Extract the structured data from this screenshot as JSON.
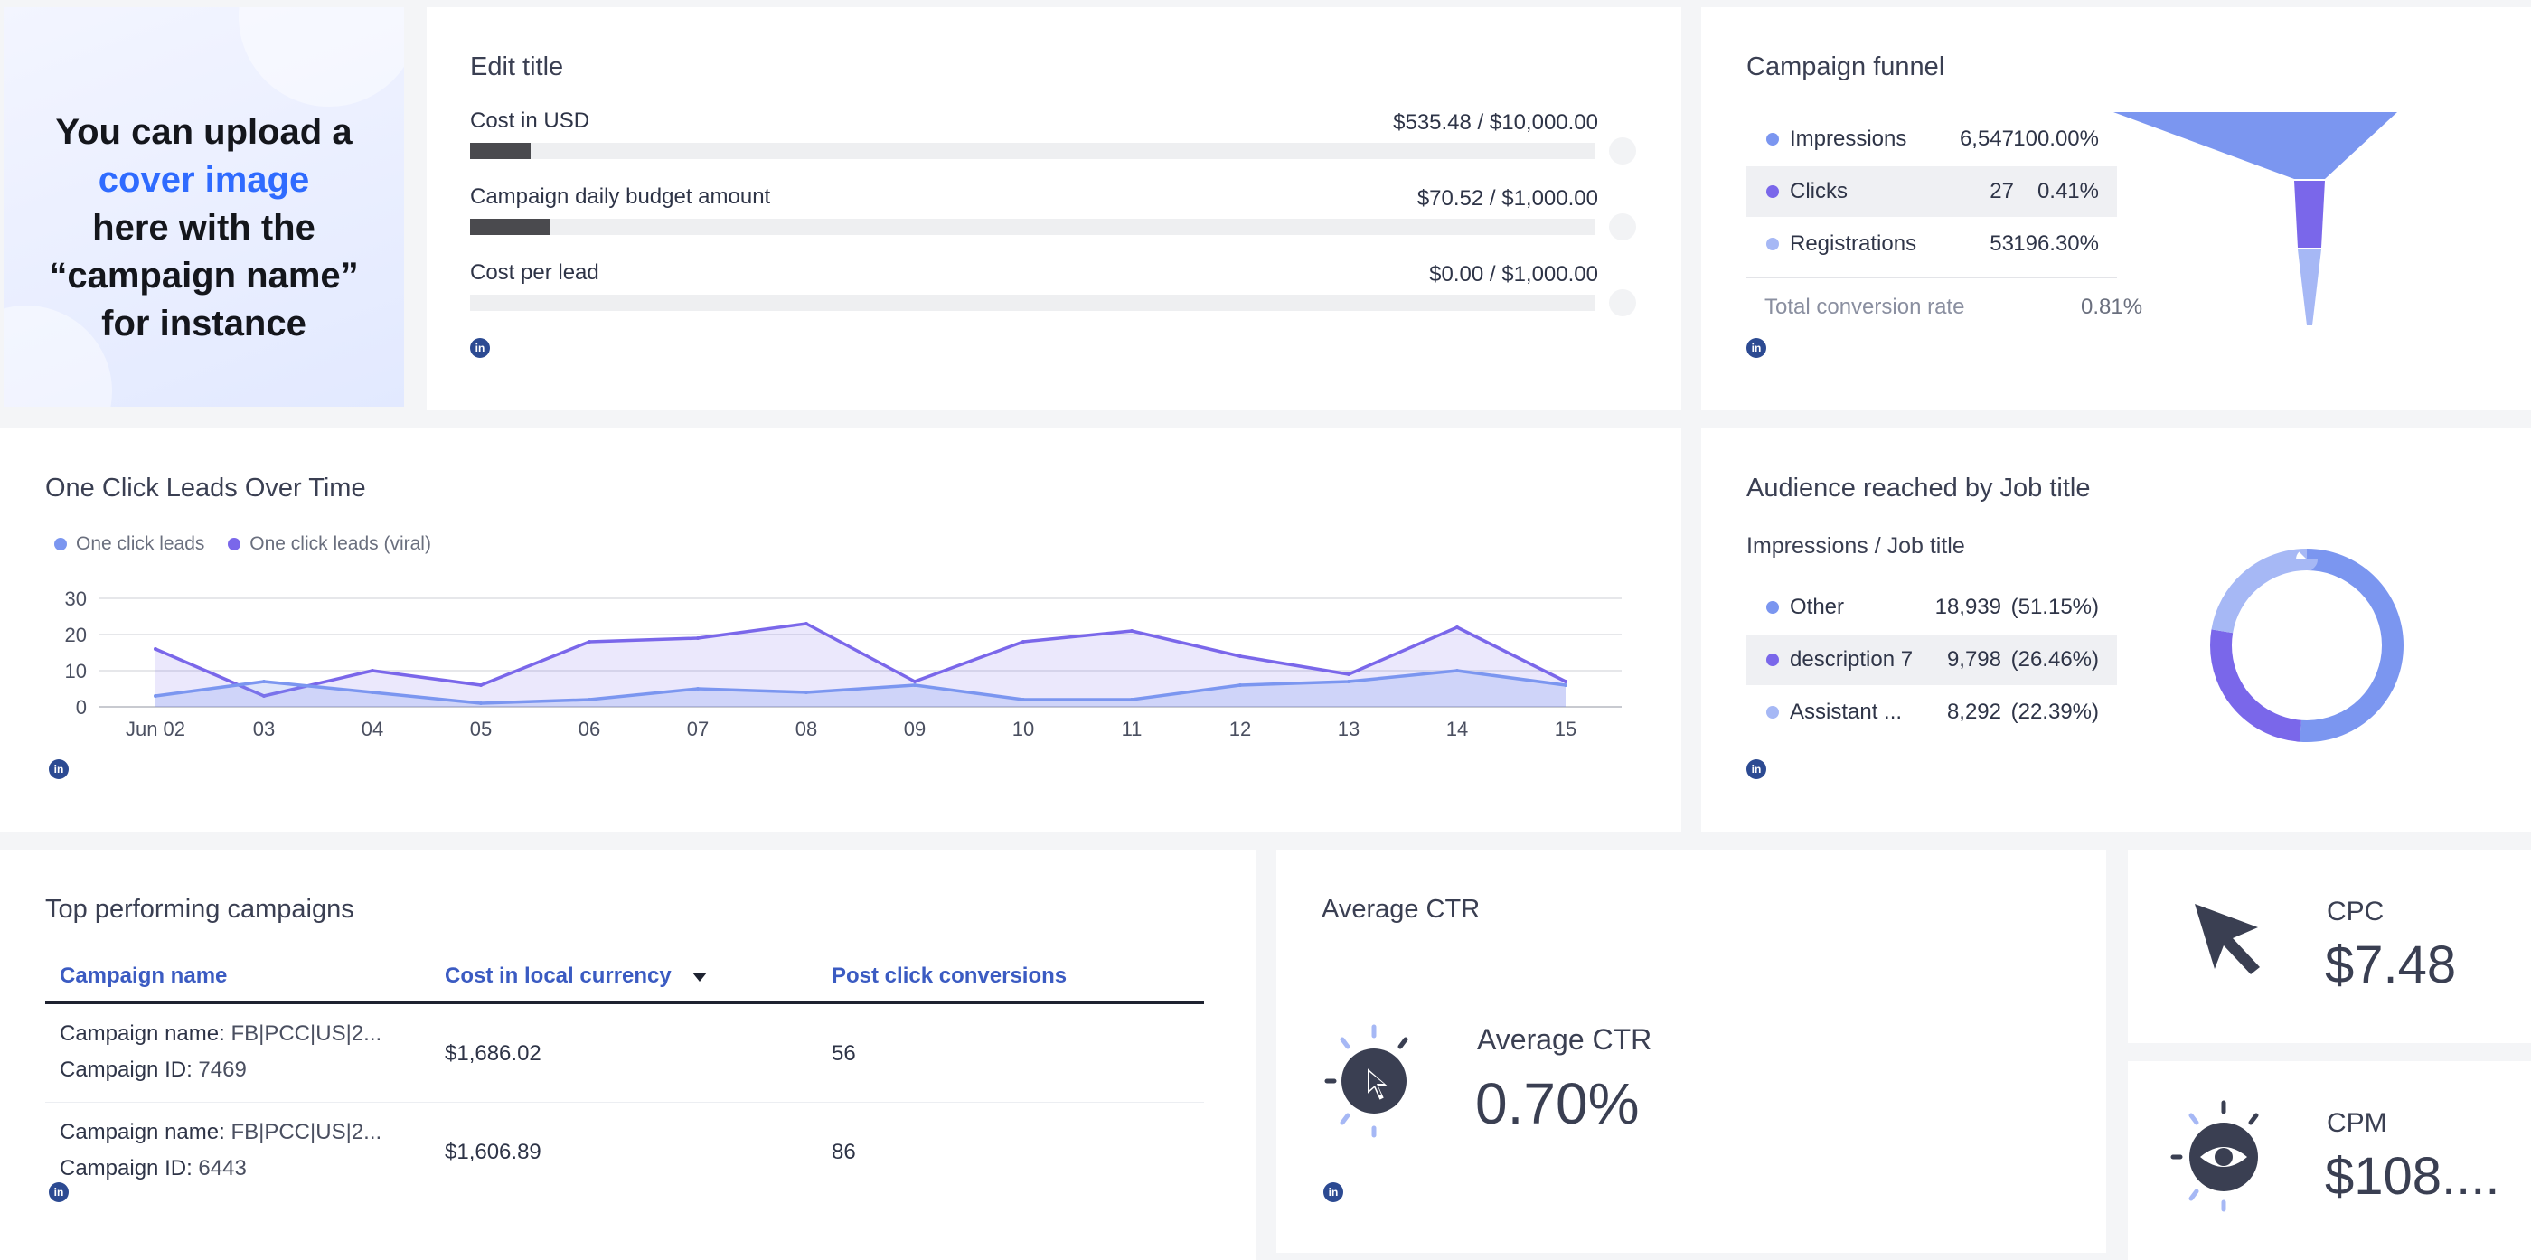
{
  "cover": {
    "line1": "You can upload a",
    "line2": "cover image",
    "line3": "here with the",
    "line4": "“campaign name”",
    "line5": "for instance"
  },
  "budget": {
    "title": "Edit title",
    "rows": [
      {
        "label": "Cost in USD",
        "value": "$535.48 / $10,000.00",
        "progress": 0.054
      },
      {
        "label": "Campaign daily budget amount",
        "value": "$70.52 / $1,000.00",
        "progress": 0.071
      },
      {
        "label": "Cost per lead",
        "value": "$0.00 / $1,000.00",
        "progress": 0.0
      }
    ],
    "source_icon": "linkedin-icon"
  },
  "funnel": {
    "title": "Campaign funnel",
    "rows": [
      {
        "name": "Impressions",
        "value": "6,547",
        "pct": "100.00%",
        "color": "#7b96f0"
      },
      {
        "name": "Clicks",
        "value": "27",
        "pct": "0.41%",
        "color": "#7a67ea"
      },
      {
        "name": "Registrations",
        "value": "53",
        "pct": "196.30%",
        "color": "#a6b8f5"
      }
    ],
    "total_label": "Total conversion rate",
    "total_value": "0.81%"
  },
  "leads": {
    "title": "One Click Leads Over Time",
    "legend": [
      {
        "name": "One click leads",
        "color": "#7b96f0"
      },
      {
        "name": "One click leads (viral)",
        "color": "#7a67ea"
      }
    ]
  },
  "chart_data": {
    "type": "area",
    "categories": [
      "Jun 02",
      "03",
      "04",
      "05",
      "06",
      "07",
      "08",
      "09",
      "10",
      "11",
      "12",
      "13",
      "14",
      "15"
    ],
    "series": [
      {
        "name": "One click leads",
        "values": [
          3,
          7,
          4,
          1,
          2,
          5,
          4,
          6,
          2,
          2,
          6,
          7,
          10,
          6
        ],
        "color": "#7b96f0"
      },
      {
        "name": "One click leads (viral)",
        "values": [
          16,
          3,
          10,
          6,
          18,
          19,
          23,
          7,
          18,
          21,
          14,
          9,
          22,
          7
        ],
        "color": "#7a67ea"
      }
    ],
    "yticks": [
      0,
      10,
      20,
      30
    ],
    "ylim": [
      0,
      30
    ],
    "grid": true,
    "legend_position": "top-left"
  },
  "audience": {
    "title": "Audience reached by Job title",
    "subtitle": "Impressions / Job title",
    "rows": [
      {
        "name": "Other",
        "value": "18,939",
        "pct": "(51.15%)",
        "share": 51.15,
        "color": "#7b96f0"
      },
      {
        "name": "description 7",
        "value": "9,798",
        "pct": "(26.46%)",
        "share": 26.46,
        "color": "#7a67ea"
      },
      {
        "name": "Assistant ...",
        "value": "8,292",
        "pct": "(22.39%)",
        "share": 22.39,
        "color": "#a6b8f5"
      }
    ]
  },
  "campaigns": {
    "title": "Top performing campaigns",
    "headers": [
      "Campaign name",
      "Cost in local currency",
      "Post click conversions"
    ],
    "rows": [
      {
        "name_key": "Campaign name:",
        "name_val": "FB|PCC|US|2...",
        "id_key": "Campaign ID:",
        "id_val": "7469",
        "cost": "$1,686.02",
        "conversions": "56"
      },
      {
        "name_key": "Campaign name:",
        "name_val": "FB|PCC|US|2...",
        "id_key": "Campaign ID:",
        "id_val": "6443",
        "cost": "$1,606.89",
        "conversions": "86"
      }
    ]
  },
  "ctr": {
    "title": "Average CTR",
    "label": "Average CTR",
    "value": "0.70%"
  },
  "cpc": {
    "label": "CPC",
    "value": "$7.48"
  },
  "cpm": {
    "label": "CPM",
    "value": "$108...."
  },
  "linkedin_label": "in"
}
